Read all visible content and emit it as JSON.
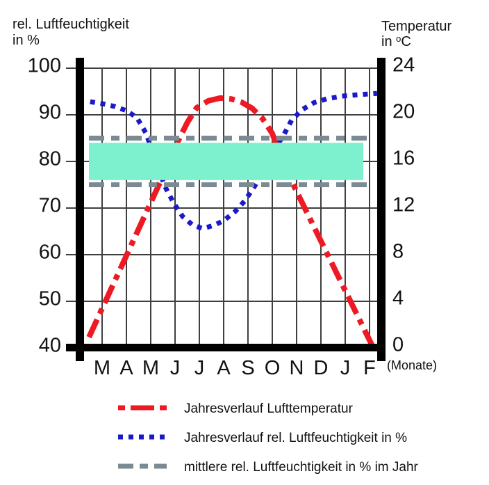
{
  "chart_data": {
    "type": "line",
    "categories": [
      "M",
      "A",
      "M",
      "J",
      "J",
      "A",
      "S",
      "O",
      "N",
      "D",
      "J",
      "F"
    ],
    "x_axis_note": "(Monate)",
    "left_axis": {
      "title_line1": "rel. Luftfeuchtigkeit",
      "title_line2": "in %",
      "ticks": [
        100,
        90,
        80,
        70,
        60,
        50,
        40
      ],
      "min": 40,
      "max": 100
    },
    "right_axis": {
      "title_line1": "Temperatur",
      "title_line2_pre": "in ",
      "title_line2_sup": "o",
      "title_line2_unit": "C",
      "ticks": [
        24,
        20,
        16,
        12,
        8,
        4,
        0
      ],
      "min": 0,
      "max": 24
    },
    "grid": true,
    "legend_position": "bottom",
    "series": [
      {
        "name": "Jahresverlauf Lufttemperatur",
        "axis": "right",
        "unit": "°C",
        "color": "#ed1a23",
        "style": "dashdot",
        "monthly_values": [
          3.5,
          8,
          12.5,
          17,
          21,
          21.5,
          21,
          18.5,
          13.5,
          9,
          5,
          0.5
        ],
        "path_pct_scale": [
          [
            -0.54,
            42.3
          ],
          [
            2.45,
            76.3
          ],
          [
            2.8,
            81.5
          ],
          [
            3.11,
            84.2
          ],
          [
            3.5,
            88.3
          ],
          [
            3.89,
            91.5
          ],
          [
            4.37,
            93.0
          ],
          [
            4.86,
            93.6
          ],
          [
            5.31,
            93.4
          ],
          [
            5.74,
            92.7
          ],
          [
            6.17,
            91.4
          ],
          [
            6.6,
            89.2
          ],
          [
            7.0,
            86.0
          ],
          [
            7.35,
            80.8
          ],
          [
            7.8,
            75.7
          ],
          [
            11.1,
            40.6
          ]
        ]
      },
      {
        "name": "Jahresverlauf rel. Luftfeuchtigkeit in %",
        "axis": "left",
        "unit": "%",
        "color": "#1b1acb",
        "style": "dotted",
        "monthly_values": [
          92,
          91,
          84,
          71,
          66,
          67,
          72,
          82,
          90,
          93,
          94,
          94.5
        ],
        "path_pct_scale": [
          [
            -0.49,
            92.8
          ],
          [
            0,
            92.4
          ],
          [
            0.51,
            91.8
          ],
          [
            1.0,
            90.9
          ],
          [
            1.43,
            89.4
          ],
          [
            1.8,
            86.1
          ],
          [
            2.14,
            81.2
          ],
          [
            2.57,
            74.8
          ],
          [
            2.94,
            71.1
          ],
          [
            3.31,
            68.2
          ],
          [
            3.71,
            66.4
          ],
          [
            4.14,
            65.6
          ],
          [
            4.6,
            66.3
          ],
          [
            5.0,
            67.3
          ],
          [
            5.46,
            69.2
          ],
          [
            5.86,
            71.5
          ],
          [
            6.29,
            74.8
          ],
          [
            6.71,
            79.0
          ],
          [
            7.14,
            83.1
          ],
          [
            7.43,
            85.3
          ],
          [
            7.8,
            88.9
          ],
          [
            8.23,
            91.1
          ],
          [
            8.71,
            92.6
          ],
          [
            9.23,
            93.4
          ],
          [
            9.86,
            94.0
          ],
          [
            10.51,
            94.3
          ],
          [
            11.31,
            94.6
          ]
        ]
      }
    ],
    "mean_band": {
      "label": "mittlere rel. Luftfeuchtigkeit in % im Jahr",
      "mean_pct": 80,
      "upper_line_pct": 85,
      "lower_line_pct": 75,
      "band_top_pct": 84,
      "band_bottom_pct": 76,
      "fill": "#7df0cd",
      "line_color": "#7c8a93",
      "line_style": "dash"
    },
    "colors": {
      "grid": "#3f3f3f",
      "axis_bars": "#000000",
      "background": "#ffffff"
    }
  }
}
